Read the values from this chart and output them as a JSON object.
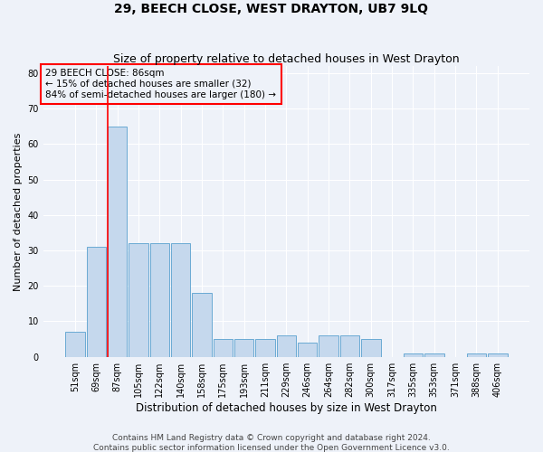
{
  "title1": "29, BEECH CLOSE, WEST DRAYTON, UB7 9LQ",
  "title2": "Size of property relative to detached houses in West Drayton",
  "xlabel": "Distribution of detached houses by size in West Drayton",
  "ylabel": "Number of detached properties",
  "categories": [
    "51sqm",
    "69sqm",
    "87sqm",
    "105sqm",
    "122sqm",
    "140sqm",
    "158sqm",
    "175sqm",
    "193sqm",
    "211sqm",
    "229sqm",
    "246sqm",
    "264sqm",
    "282sqm",
    "300sqm",
    "317sqm",
    "335sqm",
    "353sqm",
    "371sqm",
    "388sqm",
    "406sqm"
  ],
  "values": [
    7,
    31,
    65,
    32,
    32,
    32,
    18,
    5,
    5,
    5,
    6,
    4,
    6,
    6,
    5,
    0,
    1,
    1,
    0,
    1,
    1
  ],
  "bar_color": "#c5d8ed",
  "bar_edge_color": "#6aaad4",
  "red_line_index": 2,
  "annotation_line1": "29 BEECH CLOSE: 86sqm",
  "annotation_line2": "← 15% of detached houses are smaller (32)",
  "annotation_line3": "84% of semi-detached houses are larger (180) →",
  "ylim": [
    0,
    82
  ],
  "yticks": [
    0,
    10,
    20,
    30,
    40,
    50,
    60,
    70,
    80
  ],
  "footer1": "Contains HM Land Registry data © Crown copyright and database right 2024.",
  "footer2": "Contains public sector information licensed under the Open Government Licence v3.0.",
  "background_color": "#eef2f9",
  "grid_color": "#ffffff",
  "title1_fontsize": 10,
  "title2_fontsize": 9,
  "xlabel_fontsize": 8.5,
  "ylabel_fontsize": 8,
  "tick_fontsize": 7,
  "annotation_fontsize": 7.5,
  "footer_fontsize": 6.5
}
